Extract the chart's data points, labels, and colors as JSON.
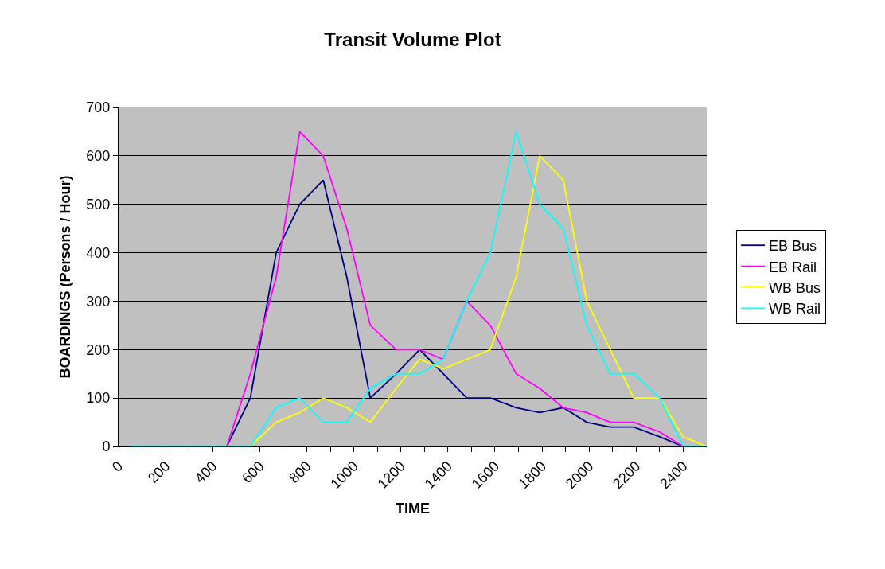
{
  "chart_data": {
    "type": "line",
    "title": "Transit Volume Plot",
    "xlabel": "TIME",
    "ylabel": "BOARDINGS (Persons / Hour)",
    "x": [
      50,
      160,
      260,
      360,
      460,
      560,
      670,
      770,
      870,
      970,
      1070,
      1180,
      1280,
      1380,
      1480,
      1580,
      1690,
      1790,
      1890,
      1990,
      2090,
      2190,
      2300,
      2400,
      2500
    ],
    "series": [
      {
        "name": "EB Bus",
        "color": "#000080",
        "values": [
          null,
          null,
          null,
          null,
          0,
          100,
          400,
          500,
          550,
          350,
          100,
          150,
          200,
          150,
          100,
          100,
          80,
          70,
          80,
          50,
          40,
          40,
          20,
          0,
          null
        ]
      },
      {
        "name": "EB Rail",
        "color": "#ff00ff",
        "values": [
          null,
          null,
          null,
          null,
          0,
          150,
          350,
          650,
          600,
          450,
          250,
          200,
          200,
          180,
          300,
          250,
          150,
          120,
          80,
          70,
          50,
          50,
          30,
          0,
          null
        ]
      },
      {
        "name": "WB Bus",
        "color": "#ffff00",
        "values": [
          null,
          null,
          null,
          null,
          0,
          0,
          50,
          70,
          100,
          80,
          50,
          120,
          180,
          160,
          180,
          200,
          350,
          600,
          550,
          300,
          200,
          100,
          100,
          20,
          0
        ]
      },
      {
        "name": "WB Rail",
        "color": "#00ffff",
        "values": [
          0,
          0,
          0,
          0,
          0,
          0,
          80,
          100,
          50,
          50,
          120,
          150,
          150,
          180,
          300,
          400,
          650,
          500,
          450,
          250,
          150,
          150,
          100,
          0,
          0
        ]
      }
    ],
    "xlim": [
      0,
      2500
    ],
    "xticks": [
      0,
      {
        "value": 100,
        "label": null
      },
      200,
      {
        "value": 300,
        "label": null
      },
      400,
      {
        "value": 500,
        "label": null
      },
      600,
      {
        "value": 700,
        "label": null
      },
      800,
      {
        "value": 900,
        "label": null
      },
      1000,
      {
        "value": 1100,
        "label": null
      },
      1200,
      {
        "value": 1300,
        "label": null
      },
      1400,
      {
        "value": 1500,
        "label": null
      },
      1600,
      {
        "value": 1700,
        "label": null
      },
      1800,
      {
        "value": 1900,
        "label": null
      },
      2000,
      {
        "value": 2100,
        "label": null
      },
      2200,
      {
        "value": 2300,
        "label": null
      },
      2400
    ],
    "ylim": [
      0,
      700
    ],
    "yticks": [
      0,
      100,
      200,
      300,
      400,
      500,
      600,
      700
    ],
    "grid": "y",
    "legend": "right",
    "marker": "none",
    "line_style": "solid"
  }
}
